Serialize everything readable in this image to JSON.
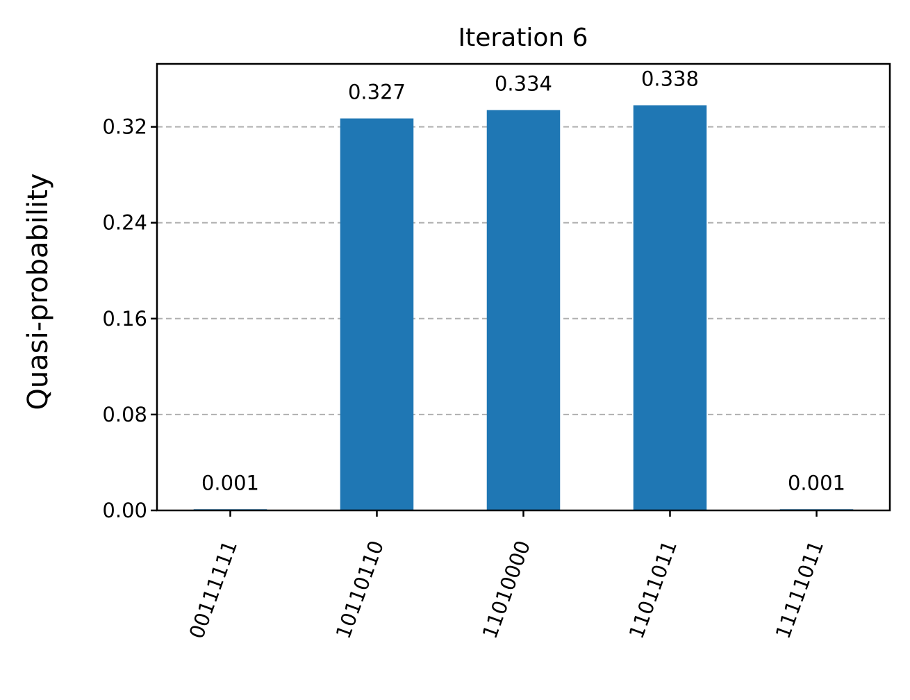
{
  "chart_data": {
    "type": "bar",
    "title": "Iteration 6",
    "xlabel": "",
    "ylabel": "Quasi-probability",
    "categories": [
      "00111111",
      "10110110",
      "11010000",
      "11011011",
      "11111011"
    ],
    "values": [
      0.001,
      0.327,
      0.334,
      0.338,
      0.001
    ],
    "data_labels": [
      "0.001",
      "0.327",
      "0.334",
      "0.338",
      "0.001"
    ],
    "yticks": [
      0.0,
      0.08,
      0.16,
      0.24,
      0.32
    ],
    "ytick_labels": [
      "0.00",
      "0.08",
      "0.16",
      "0.24",
      "0.32"
    ],
    "ylim": [
      0,
      0.3725
    ],
    "grid": "y-dashed",
    "bar_color": "#1f77b4",
    "grid_color": "#b0b0b0"
  }
}
